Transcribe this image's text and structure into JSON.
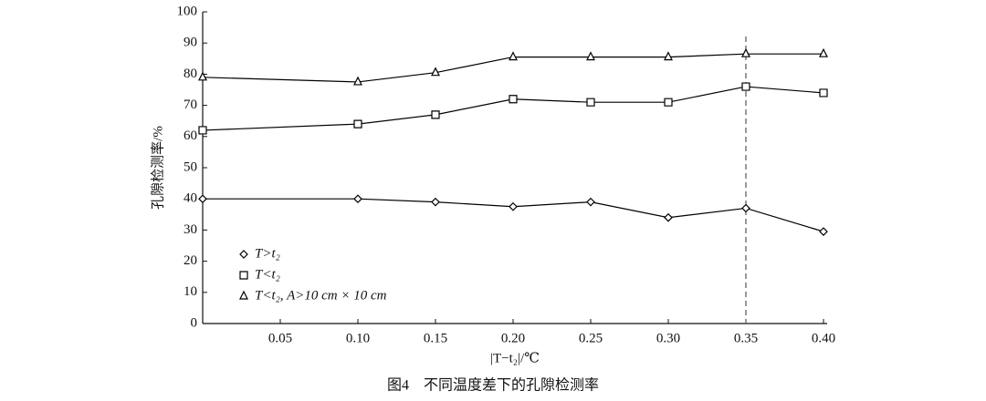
{
  "chart_data": {
    "type": "line",
    "caption": "图4　不同温度差下的孔隙检测率",
    "x_label": "|T−t₂|/℃",
    "y_label": "孔隙检测率/%",
    "x": [
      0,
      0.1,
      0.15,
      0.2,
      0.25,
      0.3,
      0.35,
      0.4
    ],
    "series": [
      {
        "name": "T>t₂",
        "marker": "diamond",
        "color": "#000000",
        "values": [
          40,
          40,
          39,
          37.5,
          39,
          34,
          37,
          29.5
        ]
      },
      {
        "name": "T<t₂",
        "marker": "square",
        "color": "#000000",
        "values": [
          62,
          64,
          67,
          72,
          71,
          71,
          76,
          74
        ]
      },
      {
        "name": "T<t₂, A>10 cm × 10 cm",
        "marker": "triangle",
        "color": "#000000",
        "values": [
          79,
          77.5,
          80.5,
          85.5,
          85.5,
          85.5,
          86.5,
          86.5
        ]
      }
    ],
    "reference_x": 0.35,
    "xlim": [
      0,
      0.4
    ],
    "xticks": [
      0.05,
      {
        "value": 0.1,
        "label": "0.10"
      },
      0.15,
      {
        "value": 0.2,
        "label": "0.20"
      },
      0.25,
      {
        "value": 0.3,
        "label": "0.30"
      },
      0.35,
      {
        "value": 0.4,
        "label": "0.40"
      }
    ],
    "ylim": [
      0,
      100
    ],
    "yticks": [
      0,
      10,
      20,
      30,
      40,
      50,
      60,
      70,
      80,
      90,
      100
    ],
    "grid": false,
    "legend": "lower-left"
  }
}
